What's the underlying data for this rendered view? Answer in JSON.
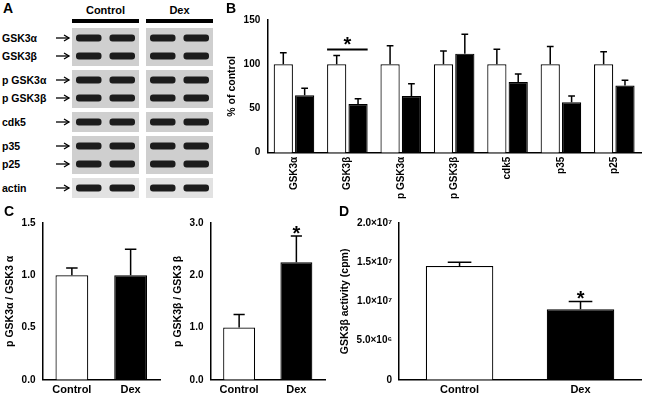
{
  "blot": {
    "panel": "A",
    "lanes": [
      "Control",
      "Dex"
    ],
    "rows": [
      [
        "GSK3α",
        "GSK3β"
      ],
      [
        "p GSK3α",
        "p GSK3β"
      ],
      [
        "cdk5"
      ],
      [
        "p35",
        "p25"
      ],
      [
        "actin"
      ]
    ]
  },
  "chart_data": [
    {
      "panel": "B",
      "type": "bar",
      "ylabel": "% of control",
      "categories": [
        "GSK3α",
        "GSK3β",
        "p GSK3α",
        "p GSK3β",
        "cdk5",
        "p35",
        "p25"
      ],
      "series": [
        {
          "color": "#ffffff",
          "values": [
            100,
            100,
            100,
            100,
            100,
            100,
            100
          ],
          "error": [
            13,
            10,
            21,
            15,
            17,
            20,
            14
          ]
        },
        {
          "color": "#000000",
          "values": [
            65,
            55,
            64,
            112,
            80,
            57,
            76
          ],
          "error": [
            8,
            6,
            14,
            22,
            9,
            7,
            6
          ]
        }
      ],
      "ylim": [
        0,
        150
      ],
      "yticks": [
        0,
        50,
        100,
        150
      ],
      "grid": false,
      "annotations": [
        {
          "text": "*",
          "category": "GSK3β"
        }
      ]
    },
    {
      "panel": "C",
      "type": "bar",
      "ylabel": "p GSK3α / GSK3 α",
      "categories": [
        "Control",
        "Dex"
      ],
      "values": [
        1.0,
        1.0
      ],
      "error": [
        0.07,
        0.25
      ],
      "colors": [
        "#ffffff",
        "#000000"
      ],
      "ylim": [
        0,
        1.5
      ],
      "yticks": [
        {
          "value": 0,
          "label": "0.0"
        },
        0.5,
        {
          "value": 1,
          "label": "1.0"
        },
        1.5
      ],
      "grid": false
    },
    {
      "type": "bar",
      "ylabel": "p GSK3β / GSK3 β",
      "categories": [
        "Control",
        "Dex"
      ],
      "values": [
        1.0,
        2.25
      ],
      "error": [
        0.25,
        0.5
      ],
      "colors": [
        "#ffffff",
        "#000000"
      ],
      "ylim": [
        0,
        3
      ],
      "yticks": [
        {
          "value": 0,
          "label": "0.0"
        },
        {
          "value": 1,
          "label": "1.0"
        },
        {
          "value": 2,
          "label": "2.0"
        },
        {
          "value": 3,
          "label": "3.0"
        }
      ],
      "grid": false,
      "annotations": [
        {
          "text": "*",
          "category": "Dex"
        }
      ]
    },
    {
      "panel": "D",
      "type": "bar",
      "ylabel": "GSK3β activity (cpm)",
      "categories": [
        "Control",
        "Dex"
      ],
      "values": [
        14500000,
        9000000
      ],
      "error": [
        500000,
        1000000
      ],
      "colors": [
        "#ffffff",
        "#000000"
      ],
      "ylim": [
        0,
        20000000
      ],
      "yticks": [
        0,
        {
          "value": 5000000,
          "label": "5.0×10⁶"
        },
        {
          "value": 10000000,
          "label": "1.0×10⁷"
        },
        {
          "value": 15000000,
          "label": "1.5×10⁷"
        },
        {
          "value": 20000000,
          "label": "2.0×10⁷"
        }
      ],
      "grid": false,
      "annotations": [
        {
          "text": "*",
          "category": "Dex"
        }
      ]
    }
  ]
}
